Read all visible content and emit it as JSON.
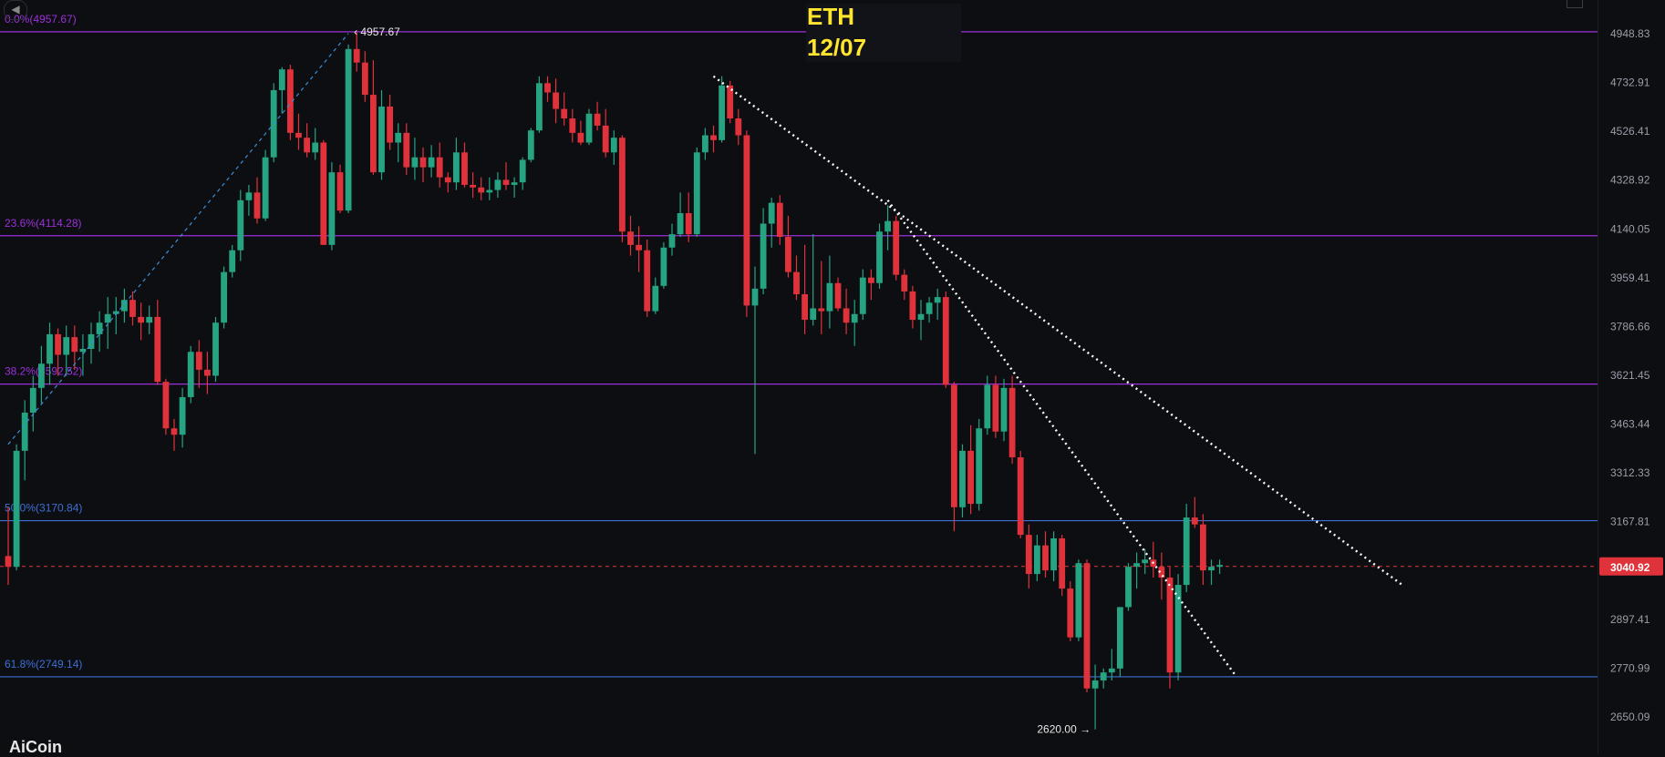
{
  "title": {
    "symbol": "ETH",
    "date": "12/07"
  },
  "logo": "AiCoin",
  "colors": {
    "background": "#0d0e12",
    "up": "#26a482",
    "down": "#e0323a",
    "fib_purple": "#9b30d9",
    "fib_blue": "#3d6fd6",
    "price_line": "#e0323a",
    "trendline": "#ffffff",
    "axis_text": "#9a9ea8"
  },
  "chart_data": {
    "type": "candlestick",
    "ylim": [
      2580,
      5050
    ],
    "y_scale": "log",
    "price_axis_ticks": [
      "4948.83",
      "4732.91",
      "4526.41",
      "4328.92",
      "4140.05",
      "3959.41",
      "3786.66",
      "3621.45",
      "3463.44",
      "3312.33",
      "3167.81",
      "2897.41",
      "2770.99",
      "2650.09"
    ],
    "current_price": "3040.92",
    "fib_levels": [
      {
        "label": "0.0%(4957.67)",
        "price": 4957.67,
        "color": "purple"
      },
      {
        "label": "23.6%(4114.28)",
        "price": 4114.28,
        "color": "purple"
      },
      {
        "label": "38.2%(3592.52)",
        "price": 3592.52,
        "color": "purple"
      },
      {
        "label": "50.0%(3170.84)",
        "price": 3170.84,
        "color": "blue"
      },
      {
        "label": "61.8%(2749.14)",
        "price": 2749.14,
        "color": "blue"
      }
    ],
    "annotations": [
      {
        "text": "4957.67",
        "price": 4957.67,
        "bar": 41,
        "side": "right"
      },
      {
        "text": "2620.00",
        "price": 2620.0,
        "bar": 131,
        "side": "left"
      }
    ],
    "trendlines": [
      {
        "style": "dotted",
        "from": {
          "bar": 85,
          "price": 4760
        },
        "to": {
          "bar": 168,
          "price": 2990
        }
      },
      {
        "style": "dotted",
        "from": {
          "bar": 106,
          "price": 4250
        },
        "to": {
          "bar": 148,
          "price": 2750
        }
      },
      {
        "style": "dashed-blue",
        "from": {
          "bar": 0,
          "price": 3400
        },
        "to": {
          "bar": 41,
          "price": 4950
        }
      }
    ],
    "candles": [
      [
        3070,
        3210,
        2990,
        3040
      ],
      [
        3040,
        3400,
        3030,
        3380
      ],
      [
        3380,
        3540,
        3290,
        3500
      ],
      [
        3500,
        3620,
        3440,
        3580
      ],
      [
        3580,
        3720,
        3530,
        3660
      ],
      [
        3660,
        3800,
        3590,
        3760
      ],
      [
        3760,
        3780,
        3620,
        3690
      ],
      [
        3690,
        3790,
        3620,
        3750
      ],
      [
        3750,
        3790,
        3640,
        3700
      ],
      [
        3700,
        3760,
        3620,
        3710
      ],
      [
        3710,
        3800,
        3660,
        3760
      ],
      [
        3760,
        3840,
        3700,
        3800
      ],
      [
        3800,
        3890,
        3710,
        3830
      ],
      [
        3830,
        3890,
        3760,
        3840
      ],
      [
        3840,
        3920,
        3800,
        3880
      ],
      [
        3880,
        3910,
        3790,
        3820
      ],
      [
        3820,
        3870,
        3740,
        3800
      ],
      [
        3800,
        3860,
        3760,
        3820
      ],
      [
        3820,
        3880,
        3590,
        3600
      ],
      [
        3600,
        3610,
        3430,
        3450
      ],
      [
        3450,
        3480,
        3380,
        3430
      ],
      [
        3430,
        3580,
        3390,
        3550
      ],
      [
        3550,
        3720,
        3530,
        3700
      ],
      [
        3700,
        3740,
        3580,
        3640
      ],
      [
        3640,
        3700,
        3560,
        3620
      ],
      [
        3620,
        3820,
        3600,
        3800
      ],
      [
        3800,
        4000,
        3780,
        3980
      ],
      [
        3980,
        4080,
        3960,
        4060
      ],
      [
        4060,
        4290,
        4020,
        4250
      ],
      [
        4250,
        4310,
        4190,
        4280
      ],
      [
        4280,
        4340,
        4160,
        4180
      ],
      [
        4180,
        4450,
        4170,
        4420
      ],
      [
        4420,
        4730,
        4400,
        4700
      ],
      [
        4700,
        4800,
        4600,
        4790
      ],
      [
        4790,
        4810,
        4490,
        4520
      ],
      [
        4520,
        4600,
        4450,
        4500
      ],
      [
        4500,
        4560,
        4420,
        4440
      ],
      [
        4440,
        4540,
        4410,
        4480
      ],
      [
        4480,
        4490,
        4080,
        4080
      ],
      [
        4080,
        4400,
        4060,
        4360
      ],
      [
        4360,
        4390,
        4200,
        4210
      ],
      [
        4210,
        4900,
        4200,
        4880
      ],
      [
        4880,
        4957,
        4780,
        4820
      ],
      [
        4820,
        4870,
        4650,
        4680
      ],
      [
        4680,
        4830,
        4350,
        4360
      ],
      [
        4360,
        4700,
        4330,
        4630
      ],
      [
        4630,
        4680,
        4450,
        4480
      ],
      [
        4480,
        4560,
        4400,
        4520
      ],
      [
        4520,
        4560,
        4350,
        4380
      ],
      [
        4380,
        4500,
        4330,
        4420
      ],
      [
        4420,
        4460,
        4320,
        4380
      ],
      [
        4380,
        4470,
        4340,
        4420
      ],
      [
        4420,
        4480,
        4300,
        4340
      ],
      [
        4340,
        4360,
        4280,
        4320
      ],
      [
        4320,
        4500,
        4290,
        4440
      ],
      [
        4440,
        4480,
        4300,
        4310
      ],
      [
        4310,
        4360,
        4260,
        4300
      ],
      [
        4300,
        4340,
        4250,
        4280
      ],
      [
        4280,
        4340,
        4250,
        4290
      ],
      [
        4290,
        4360,
        4260,
        4330
      ],
      [
        4330,
        4400,
        4290,
        4310
      ],
      [
        4310,
        4340,
        4260,
        4320
      ],
      [
        4320,
        4420,
        4290,
        4410
      ],
      [
        4410,
        4540,
        4400,
        4530
      ],
      [
        4530,
        4760,
        4520,
        4730
      ],
      [
        4730,
        4760,
        4650,
        4690
      ],
      [
        4690,
        4750,
        4560,
        4620
      ],
      [
        4620,
        4690,
        4550,
        4580
      ],
      [
        4580,
        4620,
        4480,
        4520
      ],
      [
        4520,
        4570,
        4470,
        4480
      ],
      [
        4480,
        4620,
        4470,
        4600
      ],
      [
        4600,
        4650,
        4530,
        4550
      ],
      [
        4550,
        4620,
        4420,
        4440
      ],
      [
        4440,
        4530,
        4390,
        4500
      ],
      [
        4500,
        4510,
        4090,
        4130
      ],
      [
        4130,
        4190,
        4040,
        4080
      ],
      [
        4080,
        4150,
        3980,
        4060
      ],
      [
        4060,
        4100,
        3820,
        3840
      ],
      [
        3840,
        3960,
        3830,
        3930
      ],
      [
        3930,
        4090,
        3920,
        4070
      ],
      [
        4070,
        4160,
        4040,
        4120
      ],
      [
        4120,
        4280,
        4110,
        4200
      ],
      [
        4200,
        4280,
        4090,
        4120
      ],
      [
        4120,
        4460,
        4110,
        4440
      ],
      [
        4440,
        4540,
        4410,
        4510
      ],
      [
        4510,
        4550,
        4440,
        4490
      ],
      [
        4490,
        4760,
        4480,
        4720
      ],
      [
        4720,
        4740,
        4560,
        4580
      ],
      [
        4580,
        4620,
        4470,
        4510
      ],
      [
        4510,
        4530,
        3820,
        3860
      ],
      [
        3860,
        4000,
        3370,
        3920
      ],
      [
        3920,
        4220,
        3900,
        4160
      ],
      [
        4160,
        4260,
        4070,
        4240
      ],
      [
        4240,
        4270,
        4080,
        4110
      ],
      [
        4110,
        4190,
        3960,
        3980
      ],
      [
        3980,
        4040,
        3880,
        3900
      ],
      [
        3900,
        4080,
        3760,
        3810
      ],
      [
        3810,
        4120,
        3790,
        3850
      ],
      [
        3850,
        4020,
        3760,
        3840
      ],
      [
        3840,
        4040,
        3780,
        3940
      ],
      [
        3940,
        3960,
        3840,
        3850
      ],
      [
        3850,
        3920,
        3760,
        3800
      ],
      [
        3800,
        3880,
        3720,
        3830
      ],
      [
        3830,
        3990,
        3810,
        3960
      ],
      [
        3960,
        3990,
        3880,
        3940
      ],
      [
        3940,
        4160,
        3920,
        4130
      ],
      [
        4130,
        4230,
        4060,
        4170
      ],
      [
        4170,
        4190,
        3950,
        3970
      ],
      [
        3970,
        3990,
        3880,
        3910
      ],
      [
        3910,
        3930,
        3780,
        3810
      ],
      [
        3810,
        3880,
        3740,
        3830
      ],
      [
        3830,
        3890,
        3800,
        3870
      ],
      [
        3870,
        3920,
        3810,
        3890
      ],
      [
        3890,
        3910,
        3580,
        3590
      ],
      [
        3590,
        3600,
        3140,
        3210
      ],
      [
        3210,
        3400,
        3180,
        3380
      ],
      [
        3380,
        3460,
        3190,
        3220
      ],
      [
        3220,
        3480,
        3200,
        3450
      ],
      [
        3450,
        3620,
        3430,
        3590
      ],
      [
        3590,
        3620,
        3420,
        3440
      ],
      [
        3440,
        3610,
        3410,
        3580
      ],
      [
        3580,
        3620,
        3340,
        3360
      ],
      [
        3360,
        3380,
        3120,
        3130
      ],
      [
        3130,
        3160,
        2980,
        3020
      ],
      [
        3020,
        3130,
        3000,
        3100
      ],
      [
        3100,
        3140,
        3010,
        3030
      ],
      [
        3030,
        3140,
        3000,
        3120
      ],
      [
        3120,
        3130,
        2960,
        2980
      ],
      [
        2980,
        3000,
        2840,
        2850
      ],
      [
        2850,
        3060,
        2840,
        3050
      ],
      [
        3050,
        3060,
        2710,
        2720
      ],
      [
        2720,
        2780,
        2620,
        2740
      ],
      [
        2740,
        2770,
        2720,
        2760
      ],
      [
        2760,
        2820,
        2740,
        2770
      ],
      [
        2770,
        2930,
        2750,
        2930
      ],
      [
        2930,
        3050,
        2920,
        3040
      ],
      [
        3040,
        3080,
        2980,
        3050
      ],
      [
        3050,
        3090,
        3020,
        3060
      ],
      [
        3060,
        3110,
        3010,
        3040
      ],
      [
        3040,
        3080,
        2950,
        3010
      ],
      [
        3010,
        3040,
        2720,
        2760
      ],
      [
        2760,
        3020,
        2740,
        2990
      ],
      [
        2990,
        3220,
        2970,
        3180
      ],
      [
        3180,
        3240,
        3150,
        3160
      ],
      [
        3160,
        3190,
        2990,
        3030
      ],
      [
        3030,
        3060,
        2990,
        3040
      ],
      [
        3040,
        3060,
        3020,
        3045
      ]
    ]
  }
}
